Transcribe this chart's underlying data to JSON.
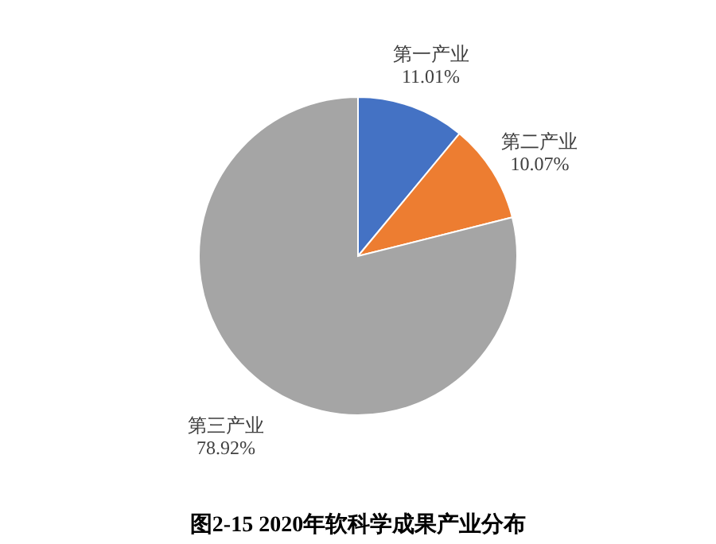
{
  "chart_data": {
    "type": "pie",
    "title": "图2-15  2020年软科学成果产业分布",
    "categories": [
      "第一产业",
      "第二产业",
      "第三产业"
    ],
    "values": [
      11.01,
      10.07,
      78.92
    ],
    "value_labels": [
      "11.01%",
      "10.07%",
      "78.92%"
    ],
    "colors": [
      "#4472c4",
      "#ed7d31",
      "#a5a5a5"
    ],
    "legend": false
  }
}
